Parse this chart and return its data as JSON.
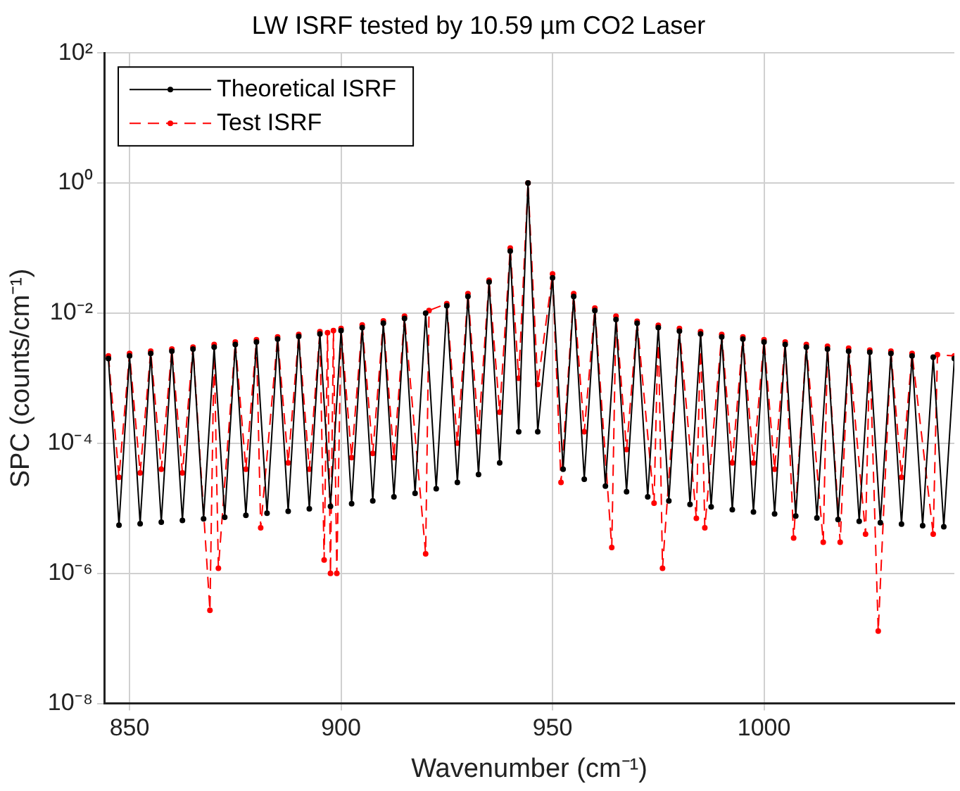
{
  "chart_data": {
    "type": "line",
    "title": "LW ISRF tested by 10.59 µm CO2 Laser",
    "xlabel": "Wavenumber (cm⁻¹)",
    "ylabel": "SPC (counts/cm⁻¹)",
    "log": "y",
    "grid": true,
    "legend": "top left",
    "marker": "circle",
    "xlim": [
      844,
      1045
    ],
    "xticks": [
      850,
      900,
      950,
      1000
    ],
    "ylim": [
      1e-08,
      100
    ],
    "yticks": [
      {
        "value": 1e-08,
        "label": "10⁻⁸"
      },
      {
        "value": 1e-06,
        "label": "10⁻⁶"
      },
      {
        "value": 0.0001,
        "label": "10⁻⁴"
      },
      {
        "value": 0.01,
        "label": "10⁻²"
      },
      {
        "value": 1,
        "label": "10⁰"
      },
      {
        "value": 100,
        "label": "10²"
      }
    ],
    "series": [
      {
        "name": "Theoretical ISRF",
        "color": "#000000",
        "line_style": "solid",
        "x": [
          845,
          847.5,
          850,
          852.5,
          855,
          857.5,
          860,
          862.5,
          865,
          867.5,
          870,
          872.5,
          875,
          877.5,
          880,
          882.5,
          885,
          887.5,
          890,
          892.5,
          895,
          897.5,
          900,
          902.5,
          905,
          907.5,
          910,
          912.5,
          915,
          917.5,
          920,
          922.5,
          925,
          927.5,
          930,
          932.5,
          935,
          937.5,
          940,
          942,
          944.2,
          946.5,
          950,
          952.5,
          955,
          957.5,
          960,
          962.5,
          965,
          967.5,
          970,
          972.5,
          975,
          977.5,
          980,
          982.5,
          985,
          987.5,
          990,
          992.5,
          995,
          997.5,
          1000,
          1002.5,
          1005,
          1007.5,
          1010,
          1012.5,
          1015,
          1017.5,
          1020,
          1022.5,
          1025,
          1027.5,
          1030,
          1032.5,
          1035,
          1037.5,
          1040,
          1042.5,
          1045
        ],
        "values": [
          0.002,
          5.5e-06,
          0.0022,
          5.8e-06,
          0.0024,
          6.1e-06,
          0.0026,
          6.5e-06,
          0.0028,
          6.9e-06,
          0.003,
          7.3e-06,
          0.0033,
          7.8e-06,
          0.0036,
          8.4e-06,
          0.004,
          9e-06,
          0.0044,
          9.8e-06,
          0.0048,
          1.07e-05,
          0.0054,
          1.18e-05,
          0.006,
          1.3e-05,
          0.007,
          1.5e-05,
          0.0083,
          1.7e-05,
          0.01,
          2e-05,
          0.013,
          2.5e-05,
          0.018,
          3.3e-05,
          0.03,
          5e-05,
          0.09,
          0.00015,
          1,
          0.00015,
          0.035,
          4e-05,
          0.018,
          2.8e-05,
          0.011,
          2.2e-05,
          0.008,
          1.8e-05,
          0.007,
          1.5e-05,
          0.006,
          1.3e-05,
          0.0053,
          1.15e-05,
          0.0048,
          1.05e-05,
          0.0043,
          9.5e-06,
          0.004,
          8.8e-06,
          0.0036,
          8.2e-06,
          0.0033,
          7.6e-06,
          0.003,
          7.1e-06,
          0.0028,
          6.7e-06,
          0.0026,
          6.3e-06,
          0.0025,
          6e-06,
          0.0024,
          5.7e-06,
          0.0022,
          5.4e-06,
          0.0021,
          5.2e-06,
          0.002
        ]
      },
      {
        "name": "Test ISRF",
        "color": "#ff0000",
        "line_style": "dashed",
        "x": [
          845,
          847.5,
          850,
          852.5,
          855,
          857.5,
          860,
          862.5,
          865,
          869,
          870,
          871,
          875,
          877.5,
          880,
          881,
          885,
          887.5,
          890,
          892.5,
          895,
          896,
          896.8,
          897.5,
          898.2,
          899,
          900,
          902.5,
          905,
          907.5,
          910,
          912.5,
          915,
          920,
          920.8,
          925,
          927.5,
          930,
          932.5,
          935,
          937.5,
          940,
          942,
          944.2,
          946.5,
          950,
          952,
          955,
          957.5,
          960,
          964,
          965,
          967.5,
          970,
          974,
          975,
          976,
          980,
          984,
          985,
          986,
          990,
          992.5,
          995,
          997.5,
          1000,
          1002.5,
          1005,
          1007,
          1010,
          1014,
          1015,
          1018,
          1020,
          1024,
          1025,
          1027,
          1030,
          1032.5,
          1035,
          1040,
          1041,
          1045
        ],
        "values": [
          0.0022,
          3e-05,
          0.0024,
          3.5e-05,
          0.0026,
          4e-05,
          0.0028,
          3.5e-05,
          0.003,
          2.7e-07,
          0.0033,
          1.2e-06,
          0.0036,
          4e-05,
          0.0039,
          5e-06,
          0.0043,
          5e-05,
          0.0047,
          4e-05,
          0.0052,
          1.6e-06,
          0.005,
          1e-06,
          0.0054,
          1e-06,
          0.0058,
          6e-05,
          0.0066,
          7e-05,
          0.0076,
          6e-05,
          0.009,
          2e-06,
          0.011,
          0.014,
          0.0001,
          0.02,
          0.00015,
          0.032,
          0.0003,
          0.1,
          0.001,
          1,
          0.0008,
          0.04,
          2.5e-05,
          0.02,
          0.00015,
          0.012,
          2.5e-06,
          0.009,
          8e-05,
          0.0075,
          1.2e-05,
          0.0065,
          1.2e-06,
          0.0058,
          7e-06,
          0.0052,
          5e-06,
          0.0047,
          5e-05,
          0.0043,
          5e-05,
          0.0039,
          4e-05,
          0.0036,
          3.5e-06,
          0.0033,
          3e-06,
          0.0031,
          3e-06,
          0.0029,
          4e-06,
          0.0027,
          1.3e-07,
          0.0026,
          3e-05,
          0.0024,
          4e-06,
          0.0023,
          0.0022
        ]
      }
    ]
  }
}
